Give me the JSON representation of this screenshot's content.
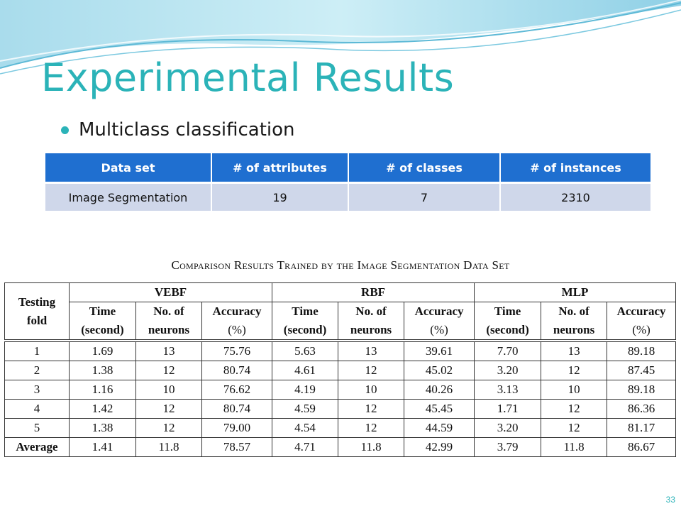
{
  "slide": {
    "title": "Experimental Results",
    "bullet": "Multiclass classification",
    "page_number": "33",
    "accent_color": "#2bb3b8"
  },
  "summary_table": {
    "headers": [
      "Data set",
      "# of attributes",
      "# of classes",
      "# of instances"
    ],
    "row": [
      "Image Segmentation",
      "19",
      "7",
      "2310"
    ],
    "header_color": "#1f6fd0",
    "row_color": "#cfd7ea"
  },
  "results_table": {
    "caption": "Comparison Results Trained by the Image Segmentation Data Set",
    "corner": [
      "Testing",
      "fold"
    ],
    "groups": [
      "VEBF",
      "RBF",
      "MLP"
    ],
    "subheaders": [
      {
        "top": "Time",
        "bottom": "(second)"
      },
      {
        "top": "No. of",
        "bottom": "neurons"
      },
      {
        "top": "Accuracy",
        "bottom": "(%)"
      }
    ],
    "rows": [
      [
        "1",
        "1.69",
        "13",
        "75.76",
        "5.63",
        "13",
        "39.61",
        "7.70",
        "13",
        "89.18"
      ],
      [
        "2",
        "1.38",
        "12",
        "80.74",
        "4.61",
        "12",
        "45.02",
        "3.20",
        "12",
        "87.45"
      ],
      [
        "3",
        "1.16",
        "10",
        "76.62",
        "4.19",
        "10",
        "40.26",
        "3.13",
        "10",
        "89.18"
      ],
      [
        "4",
        "1.42",
        "12",
        "80.74",
        "4.59",
        "12",
        "45.45",
        "1.71",
        "12",
        "86.36"
      ],
      [
        "5",
        "1.38",
        "12",
        "79.00",
        "4.54",
        "12",
        "44.59",
        "3.20",
        "12",
        "81.17"
      ],
      [
        "Average",
        "1.41",
        "11.8",
        "78.57",
        "4.71",
        "11.8",
        "42.99",
        "3.79",
        "11.8",
        "86.67"
      ]
    ]
  }
}
